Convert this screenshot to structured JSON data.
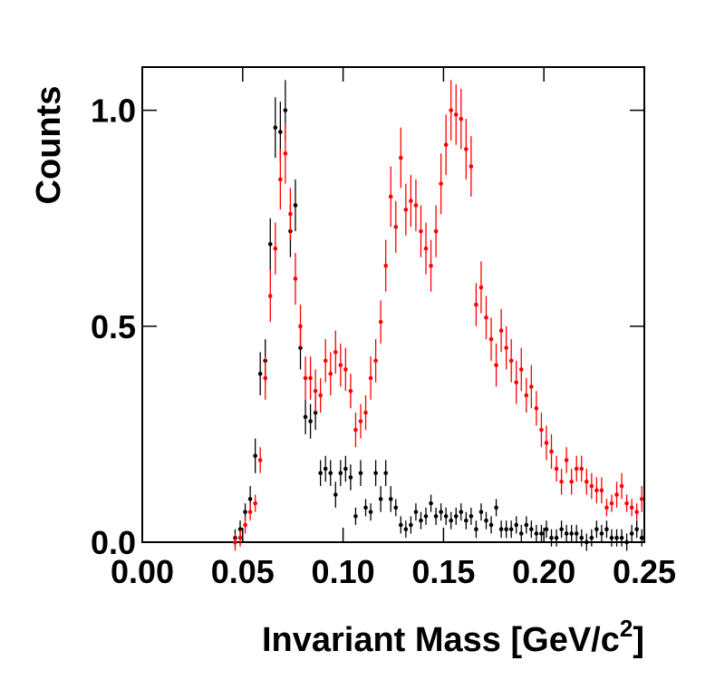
{
  "chart_data": {
    "type": "scatter",
    "y_label": "Counts",
    "x_label": {
      "text": "Invariant Mass [GeV/c",
      "sup": "2",
      "end": "]"
    },
    "xlim": [
      0,
      0.25
    ],
    "ylim": [
      0,
      1.1
    ],
    "xticks": [
      {
        "value": 0,
        "label": "0.00"
      },
      {
        "value": 0.05,
        "label": "0.05"
      },
      {
        "value": 0.1,
        "label": "0.10"
      },
      {
        "value": 0.15,
        "label": "0.15"
      },
      {
        "value": 0.2,
        "label": "0.20"
      },
      {
        "value": 0.25,
        "label": "0.25"
      }
    ],
    "yticks": [
      {
        "value": 0,
        "label": "0.0"
      },
      {
        "value": 0.5,
        "label": "0.5"
      },
      {
        "value": 1,
        "label": "1.0"
      }
    ],
    "x": [
      0.04625,
      0.04875,
      0.05125,
      0.05375,
      0.05625,
      0.05875,
      0.06125,
      0.06375,
      0.06625,
      0.06875,
      0.07125,
      0.07375,
      0.07625,
      0.07875,
      0.08125,
      0.08375,
      0.08625,
      0.08875,
      0.09125,
      0.09375,
      0.09625,
      0.09875,
      0.10125,
      0.10375,
      0.10625,
      0.10875,
      0.11125,
      0.11375,
      0.11625,
      0.11875,
      0.12125,
      0.12375,
      0.12625,
      0.12875,
      0.13125,
      0.13375,
      0.13625,
      0.13875,
      0.14125,
      0.14375,
      0.14625,
      0.14875,
      0.15125,
      0.15375,
      0.15625,
      0.15875,
      0.16125,
      0.16375,
      0.16625,
      0.16875,
      0.17125,
      0.17375,
      0.17625,
      0.17875,
      0.18125,
      0.18375,
      0.18625,
      0.18875,
      0.19125,
      0.19375,
      0.19625,
      0.19875,
      0.20125,
      0.20375,
      0.20625,
      0.20875,
      0.21125,
      0.21375,
      0.21625,
      0.21875,
      0.22125,
      0.22375,
      0.22625,
      0.22875,
      0.23125,
      0.23375,
      0.23625,
      0.23875,
      0.24125,
      0.24375,
      0.24625,
      0.24875
    ],
    "series": [
      {
        "color": "#000000",
        "values": [
          0.01,
          0.03,
          0.07,
          0.1,
          0.2,
          0.39,
          0.42,
          0.69,
          0.96,
          0.95,
          1.0,
          0.72,
          0.78,
          0.45,
          0.29,
          0.28,
          0.3,
          0.16,
          0.17,
          0.16,
          0.11,
          0.16,
          0.17,
          0.15,
          0.06,
          0.16,
          0.08,
          0.07,
          0.16,
          0.1,
          0.16,
          0.1,
          0.08,
          0.04,
          0.03,
          0.04,
          0.07,
          0.05,
          0.06,
          0.09,
          0.06,
          0.07,
          0.06,
          0.05,
          0.06,
          0.07,
          0.05,
          0.06,
          0.03,
          0.07,
          0.05,
          0.04,
          0.08,
          0.03,
          0.03,
          0.03,
          0.04,
          0.02,
          0.04,
          0.03,
          0.02,
          0.02,
          0.03,
          0.01,
          0.01,
          0.03,
          0.02,
          0.02,
          0.02,
          0.01,
          0.0,
          0.01,
          0.03,
          0.02,
          0.03,
          0.01,
          0.01,
          0.01,
          0.0,
          0.02,
          0.03,
          0.01
        ],
        "errors": [
          0.02,
          0.02,
          0.02,
          0.03,
          0.04,
          0.05,
          0.05,
          0.06,
          0.07,
          0.07,
          0.07,
          0.06,
          0.06,
          0.05,
          0.04,
          0.04,
          0.04,
          0.03,
          0.03,
          0.03,
          0.03,
          0.03,
          0.03,
          0.03,
          0.02,
          0.03,
          0.02,
          0.02,
          0.03,
          0.03,
          0.03,
          0.03,
          0.02,
          0.02,
          0.02,
          0.02,
          0.02,
          0.02,
          0.02,
          0.02,
          0.02,
          0.02,
          0.02,
          0.02,
          0.02,
          0.02,
          0.02,
          0.02,
          0.02,
          0.02,
          0.02,
          0.02,
          0.02,
          0.02,
          0.02,
          0.02,
          0.02,
          0.02,
          0.02,
          0.02,
          0.02,
          0.02,
          0.02,
          0.02,
          0.02,
          0.02,
          0.02,
          0.02,
          0.02,
          0.02,
          0.02,
          0.02,
          0.02,
          0.02,
          0.02,
          0.02,
          0.02,
          0.02,
          0.02,
          0.02,
          0.02,
          0.02
        ]
      },
      {
        "color": "#ff0000",
        "values": [
          0.0,
          0.01,
          0.04,
          0.07,
          0.09,
          0.19,
          0.38,
          0.57,
          0.68,
          0.84,
          0.9,
          0.76,
          0.61,
          0.5,
          0.38,
          0.38,
          0.35,
          0.34,
          0.42,
          0.39,
          0.44,
          0.41,
          0.4,
          0.35,
          0.26,
          0.28,
          0.3,
          0.38,
          0.42,
          0.51,
          0.64,
          0.8,
          0.73,
          0.89,
          0.77,
          0.79,
          0.78,
          0.72,
          0.68,
          0.64,
          0.72,
          0.83,
          0.92,
          1.0,
          0.99,
          0.98,
          0.91,
          0.87,
          0.55,
          0.59,
          0.52,
          0.47,
          0.41,
          0.49,
          0.45,
          0.42,
          0.37,
          0.4,
          0.34,
          0.36,
          0.31,
          0.26,
          0.23,
          0.21,
          0.17,
          0.14,
          0.19,
          0.14,
          0.17,
          0.17,
          0.14,
          0.13,
          0.12,
          0.12,
          0.08,
          0.09,
          0.11,
          0.13,
          0.09,
          0.08,
          0.07,
          0.1
        ],
        "errors": [
          0.02,
          0.02,
          0.02,
          0.02,
          0.02,
          0.03,
          0.05,
          0.06,
          0.06,
          0.07,
          0.07,
          0.06,
          0.06,
          0.05,
          0.05,
          0.05,
          0.05,
          0.04,
          0.05,
          0.05,
          0.05,
          0.05,
          0.05,
          0.04,
          0.04,
          0.04,
          0.04,
          0.05,
          0.05,
          0.05,
          0.06,
          0.07,
          0.06,
          0.07,
          0.06,
          0.06,
          0.06,
          0.06,
          0.06,
          0.06,
          0.06,
          0.07,
          0.07,
          0.07,
          0.07,
          0.07,
          0.07,
          0.07,
          0.05,
          0.06,
          0.05,
          0.05,
          0.05,
          0.05,
          0.05,
          0.05,
          0.05,
          0.05,
          0.04,
          0.05,
          0.04,
          0.04,
          0.04,
          0.04,
          0.03,
          0.03,
          0.03,
          0.03,
          0.03,
          0.03,
          0.03,
          0.03,
          0.03,
          0.03,
          0.02,
          0.02,
          0.03,
          0.03,
          0.02,
          0.02,
          0.02,
          0.03
        ]
      }
    ]
  }
}
